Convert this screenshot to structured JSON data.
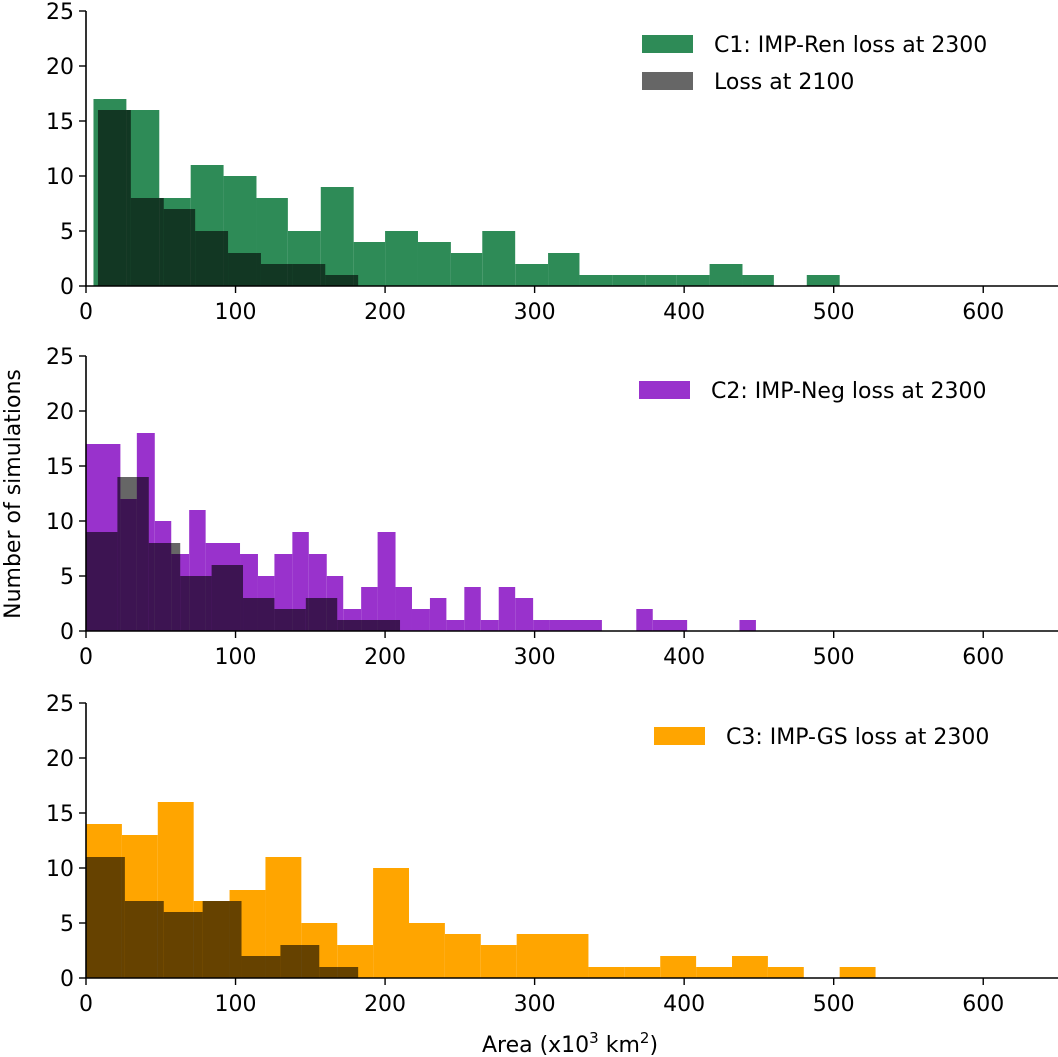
{
  "figure": {
    "ylabel": "Number of simulations",
    "xlabel": "Area (x10",
    "xlabel_sup1": "3",
    "xlabel_mid": " km",
    "xlabel_sup2": "2",
    "xlabel_end": ")"
  },
  "chart_data": [
    {
      "type": "histogram",
      "panel": "top",
      "xlim": [
        0,
        650
      ],
      "ylim": [
        0,
        25
      ],
      "xticks": [
        0,
        100,
        200,
        300,
        400,
        500,
        600
      ],
      "yticks": [
        0,
        5,
        10,
        15,
        20,
        25
      ],
      "legend_position": "top-right",
      "series": [
        {
          "name": "C1: IMP-Ren loss at 2300",
          "color": "#2e8b57",
          "opacity": 1,
          "bins": [
            [
              5,
              27,
              17
            ],
            [
              27,
              49,
              16
            ],
            [
              49,
              70,
              8
            ],
            [
              70,
              92,
              11
            ],
            [
              92,
              114,
              10
            ],
            [
              114,
              135,
              8
            ],
            [
              135,
              157,
              5
            ],
            [
              157,
              179,
              9
            ],
            [
              179,
              200,
              4
            ],
            [
              200,
              222,
              5
            ],
            [
              222,
              244,
              4
            ],
            [
              244,
              265,
              3
            ],
            [
              265,
              287,
              5
            ],
            [
              287,
              309,
              2
            ],
            [
              309,
              330,
              3
            ],
            [
              330,
              352,
              1
            ],
            [
              352,
              374,
              1
            ],
            [
              374,
              395,
              1
            ],
            [
              395,
              417,
              1
            ],
            [
              417,
              439,
              2
            ],
            [
              439,
              460,
              1
            ],
            [
              460,
              482,
              0
            ],
            [
              482,
              504,
              1
            ]
          ]
        },
        {
          "name": "Loss at 2100",
          "color": "#000000",
          "opacity": 0.6,
          "bins": [
            [
              8,
              30,
              16
            ],
            [
              30,
              52,
              8
            ],
            [
              52,
              73,
              7
            ],
            [
              73,
              95,
              5
            ],
            [
              95,
              117,
              3
            ],
            [
              117,
              138,
              2
            ],
            [
              138,
              160,
              2
            ],
            [
              160,
              182,
              1
            ]
          ]
        }
      ]
    },
    {
      "type": "histogram",
      "panel": "middle",
      "xlim": [
        0,
        650
      ],
      "ylim": [
        0,
        25
      ],
      "xticks": [
        0,
        100,
        200,
        300,
        400,
        500,
        600
      ],
      "yticks": [
        0,
        5,
        10,
        15,
        20,
        25
      ],
      "legend_position": "top-right",
      "series": [
        {
          "name": "C2: IMP-Neg loss at 2300",
          "color": "#9932cc",
          "opacity": 1,
          "bins": [
            [
              0,
              23,
              17
            ],
            [
              23,
              34,
              12
            ],
            [
              34,
              46,
              18
            ],
            [
              46,
              57,
              10
            ],
            [
              57,
              69,
              7
            ],
            [
              69,
              80,
              11
            ],
            [
              80,
              103,
              8
            ],
            [
              103,
              115,
              7
            ],
            [
              115,
              126,
              5
            ],
            [
              126,
              138,
              7
            ],
            [
              138,
              149,
              9
            ],
            [
              149,
              161,
              7
            ],
            [
              161,
              172,
              5
            ],
            [
              172,
              184,
              2
            ],
            [
              184,
              195,
              4
            ],
            [
              195,
              207,
              9
            ],
            [
              207,
              218,
              4
            ],
            [
              218,
              230,
              2
            ],
            [
              230,
              241,
              3
            ],
            [
              241,
              253,
              1
            ],
            [
              253,
              264,
              4
            ],
            [
              264,
              276,
              1
            ],
            [
              276,
              287,
              4
            ],
            [
              287,
              299,
              3
            ],
            [
              299,
              310,
              1
            ],
            [
              310,
              345,
              1
            ],
            [
              345,
              368,
              0
            ],
            [
              368,
              379,
              2
            ],
            [
              379,
              402,
              1
            ],
            [
              402,
              437,
              0
            ],
            [
              437,
              448,
              1
            ]
          ]
        },
        {
          "name": "Loss at 2100",
          "color": "#000000",
          "opacity": 0.6,
          "bins": [
            [
              0,
              21,
              9
            ],
            [
              21,
              42,
              14
            ],
            [
              42,
              63,
              8
            ],
            [
              63,
              84,
              5
            ],
            [
              84,
              105,
              6
            ],
            [
              105,
              126,
              3
            ],
            [
              126,
              147,
              2
            ],
            [
              147,
              168,
              3
            ],
            [
              168,
              210,
              1
            ]
          ]
        }
      ]
    },
    {
      "type": "histogram",
      "panel": "bottom",
      "xlim": [
        0,
        650
      ],
      "ylim": [
        0,
        25
      ],
      "xticks": [
        0,
        100,
        200,
        300,
        400,
        500,
        600
      ],
      "yticks": [
        0,
        5,
        10,
        15,
        20,
        25
      ],
      "legend_position": "top-right",
      "series": [
        {
          "name": "C3: IMP-GS loss at 2300",
          "color": "#ffa500",
          "opacity": 1,
          "bins": [
            [
              0,
              24,
              14
            ],
            [
              24,
              48,
              13
            ],
            [
              48,
              72,
              16
            ],
            [
              72,
              96,
              7
            ],
            [
              96,
              120,
              8
            ],
            [
              120,
              144,
              11
            ],
            [
              144,
              168,
              5
            ],
            [
              168,
              192,
              3
            ],
            [
              192,
              216,
              10
            ],
            [
              216,
              240,
              5
            ],
            [
              240,
              264,
              4
            ],
            [
              264,
              288,
              3
            ],
            [
              288,
              336,
              4
            ],
            [
              336,
              360,
              1
            ],
            [
              360,
              384,
              1
            ],
            [
              384,
              408,
              2
            ],
            [
              408,
              432,
              1
            ],
            [
              432,
              456,
              2
            ],
            [
              456,
              480,
              1
            ],
            [
              480,
              504,
              0
            ],
            [
              504,
              528,
              1
            ]
          ]
        },
        {
          "name": "Loss at 2100",
          "color": "#000000",
          "opacity": 0.6,
          "bins": [
            [
              0,
              26,
              11
            ],
            [
              26,
              52,
              7
            ],
            [
              52,
              78,
              6
            ],
            [
              78,
              104,
              7
            ],
            [
              104,
              130,
              2
            ],
            [
              130,
              156,
              3
            ],
            [
              156,
              182,
              1
            ]
          ]
        }
      ]
    }
  ]
}
